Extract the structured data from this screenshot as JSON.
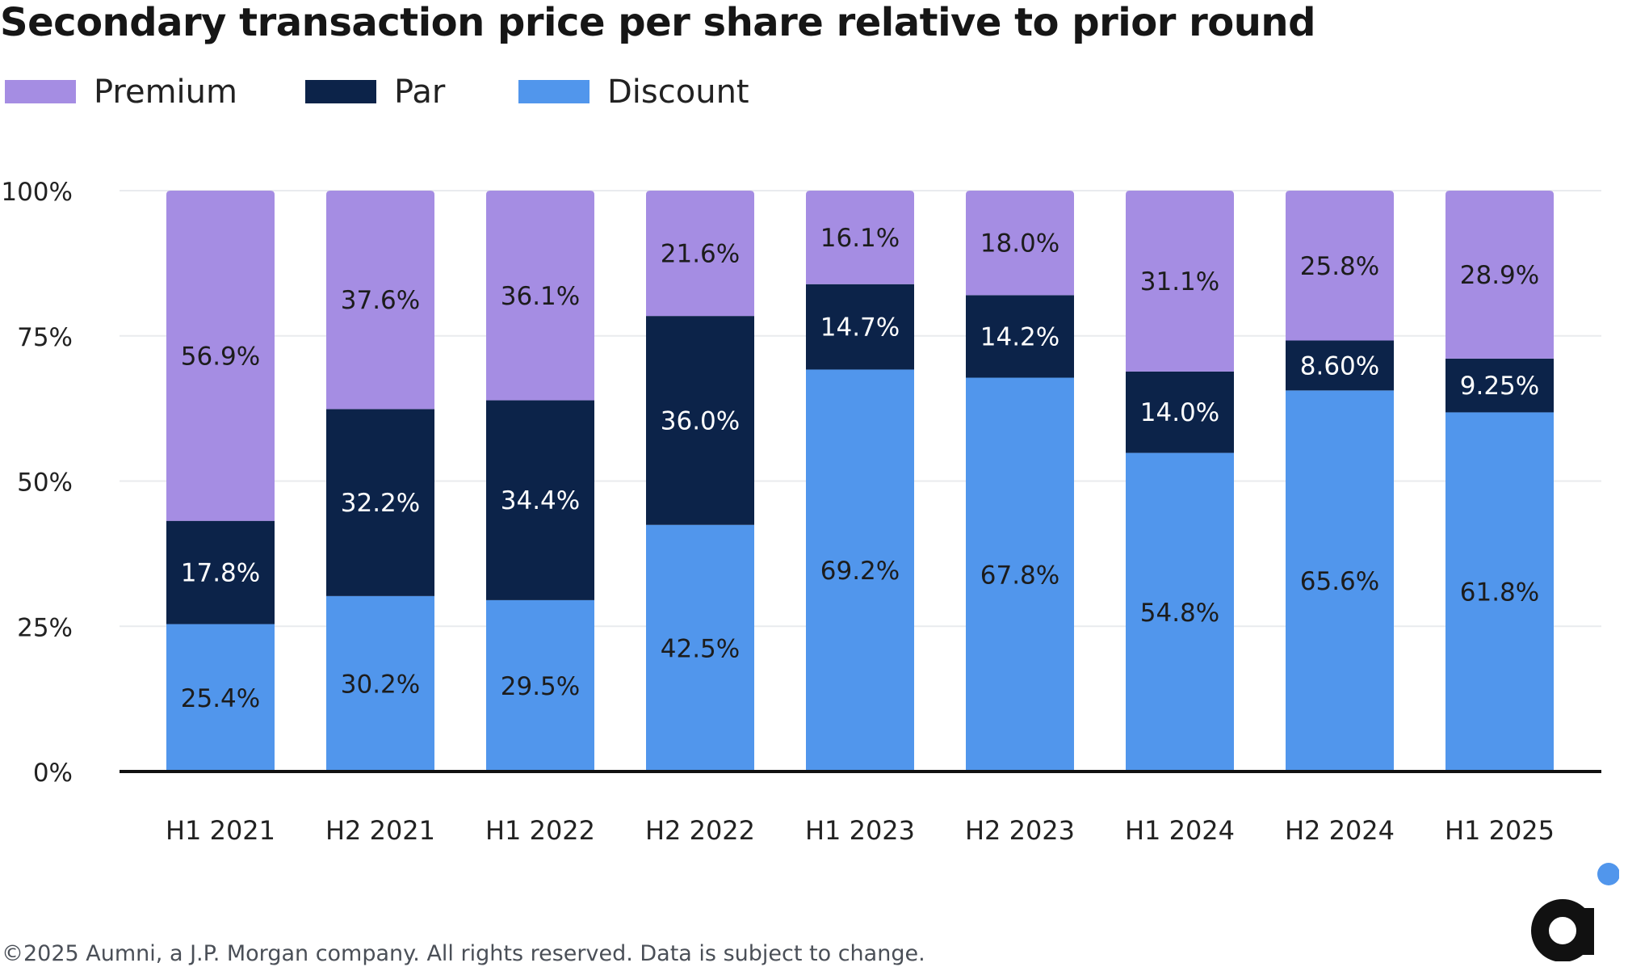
{
  "title": "Secondary transaction price per share relative to prior round",
  "footer": "©2025 Aumni, a J.P. Morgan company. All rights reserved. Data is subject to change.",
  "colors": {
    "premium": "#a58de3",
    "par": "#0c2349",
    "discount": "#5196ec",
    "grid": "#e9ebee",
    "axis": "#111111",
    "text": "#222222",
    "logo_dot": "#5196ec",
    "logo": "#111111"
  },
  "chart_data": {
    "type": "bar",
    "stacked": true,
    "title": "Secondary transaction price per share relative to prior round",
    "categories": [
      "H1 2021",
      "H2 2021",
      "H1 2022",
      "H2 2022",
      "H1 2023",
      "H2 2023",
      "H1 2024",
      "H2 2024",
      "H1 2025"
    ],
    "series": [
      {
        "name": "Discount",
        "color_key": "discount",
        "label_color": "#1c1c1c",
        "values": [
          25.4,
          30.2,
          29.5,
          42.5,
          69.2,
          67.8,
          54.8,
          65.6,
          61.8
        ],
        "labels": [
          "25.4%",
          "30.2%",
          "29.5%",
          "42.5%",
          "69.2%",
          "67.8%",
          "54.8%",
          "65.6%",
          "61.8%"
        ]
      },
      {
        "name": "Par",
        "color_key": "par",
        "label_color": "#ffffff",
        "values": [
          17.8,
          32.2,
          34.4,
          36.0,
          14.7,
          14.2,
          14.0,
          8.6,
          9.25
        ],
        "labels": [
          "17.8%",
          "32.2%",
          "34.4%",
          "36.0%",
          "14.7%",
          "14.2%",
          "14.0%",
          "8.60%",
          "9.25%"
        ]
      },
      {
        "name": "Premium",
        "color_key": "premium",
        "label_color": "#1c1c1c",
        "values": [
          56.9,
          37.6,
          36.1,
          21.6,
          16.1,
          18.0,
          31.1,
          25.8,
          28.9
        ],
        "labels": [
          "56.9%",
          "37.6%",
          "36.1%",
          "21.6%",
          "16.1%",
          "18.0%",
          "31.1%",
          "25.8%",
          "28.9%"
        ]
      }
    ],
    "legend_order": [
      "Premium",
      "Par",
      "Discount"
    ],
    "legend_position": "top-left",
    "yticks": [
      0,
      25,
      50,
      75,
      100
    ],
    "ytick_labels": [
      "0%",
      "25%",
      "50%",
      "75%",
      "100%"
    ],
    "ylim": [
      0,
      100
    ],
    "grid": true,
    "xlabel": "",
    "ylabel": ""
  }
}
